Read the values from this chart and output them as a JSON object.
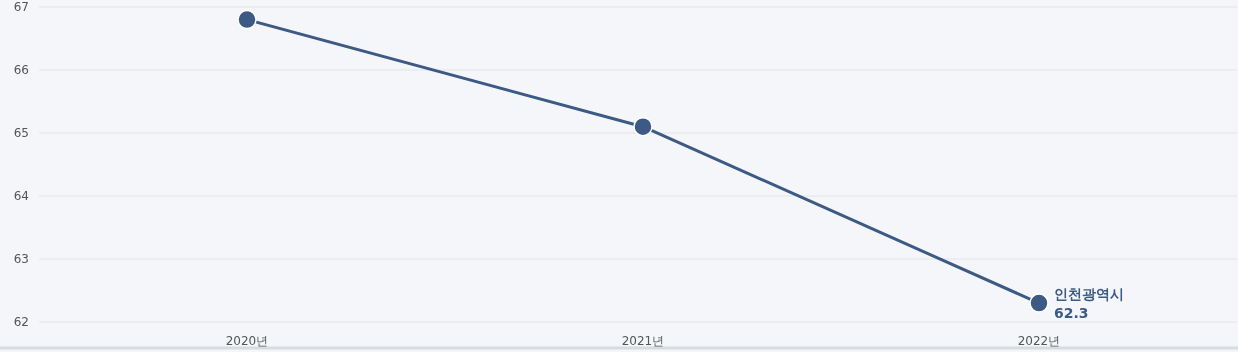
{
  "chart_data": {
    "type": "line",
    "categories": [
      "2020년",
      "2021년",
      "2022년"
    ],
    "series": [
      {
        "name": "인천광역시",
        "color": "#3d5a85",
        "values": [
          66.8,
          65.1,
          62.3
        ],
        "value_labels": [
          null,
          null,
          "62.3"
        ]
      }
    ],
    "ylim": [
      62,
      67
    ],
    "yticks": [
      62,
      63,
      64,
      65,
      66,
      67
    ],
    "grid": "y",
    "marker": "circle"
  }
}
